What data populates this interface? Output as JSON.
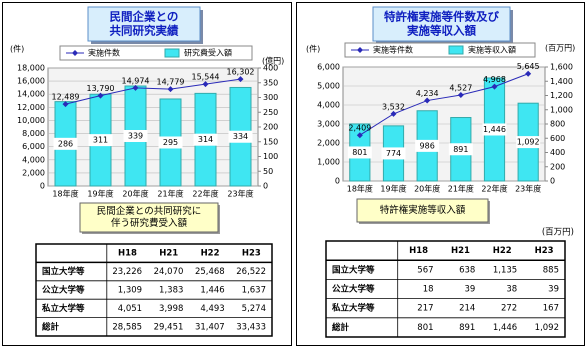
{
  "chart_data": [
    {
      "type": "combo",
      "title": [
        "民間企業との",
        "共同研究実績"
      ],
      "y_label": "(件)",
      "y2_label": "(億円)",
      "categories": [
        "18年度",
        "19年度",
        "20年度",
        "21年度",
        "22年度",
        "23年度"
      ],
      "series": [
        {
          "name": "実施件数",
          "type": "line",
          "color": "#2a2ab8",
          "values": [
            12489,
            13790,
            14974,
            14779,
            15544,
            16302
          ],
          "value_labels": [
            "12,489",
            "13,790",
            "14,974",
            "14,779",
            "15,544",
            "16,302"
          ]
        },
        {
          "name": "研究費受入額",
          "type": "bar",
          "axis": "y2",
          "color": "#3fe6f2",
          "values": [
            286,
            311,
            339,
            295,
            314,
            334
          ]
        }
      ],
      "ylim": [
        0,
        18000
      ],
      "yticks": [
        0,
        {
          "value": 2000,
          "label": "2,000"
        },
        {
          "value": 4000,
          "label": "4,000"
        },
        {
          "value": 6000,
          "label": "6,000"
        },
        {
          "value": 8000,
          "label": "8,000"
        },
        {
          "value": 10000,
          "label": "10,000"
        },
        {
          "value": 12000,
          "label": "12,000"
        },
        {
          "value": 14000,
          "label": "14,000"
        },
        {
          "value": 16000,
          "label": "16,000"
        },
        {
          "value": 18000,
          "label": "18,000"
        }
      ],
      "y2lim": [
        0,
        400
      ],
      "y2ticks": [
        0,
        50,
        100,
        150,
        200,
        250,
        300,
        350,
        400
      ],
      "grid": true,
      "legend": "top"
    },
    {
      "type": "combo",
      "title": [
        "特許権実施等件数及び",
        "実施等収入額"
      ],
      "y_label": "(件)",
      "y2_label": "(百万円)",
      "categories": [
        "18年度",
        "19年度",
        "20年度",
        "21年度",
        "22年度",
        "23年度"
      ],
      "series": [
        {
          "name": "実施等件数",
          "type": "line",
          "color": "#2a2ab8",
          "values": [
            2409,
            3532,
            4234,
            4527,
            4968,
            5645
          ],
          "value_labels": [
            "2,409",
            "3,532",
            "4,234",
            "4,527",
            "4,968",
            "5,645"
          ]
        },
        {
          "name": "実施等収入額",
          "type": "bar",
          "axis": "y2",
          "color": "#3fe6f2",
          "values": [
            801,
            774,
            986,
            891,
            1446,
            1092
          ],
          "value_labels": [
            "801",
            "774",
            "986",
            "891",
            "1,446",
            "1,092"
          ]
        }
      ],
      "ylim": [
        0,
        6000
      ],
      "yticks": [
        0,
        {
          "value": 1000,
          "label": "1,000"
        },
        {
          "value": 2000,
          "label": "2,000"
        },
        {
          "value": 3000,
          "label": "3,000"
        },
        {
          "value": 4000,
          "label": "4,000"
        },
        {
          "value": 5000,
          "label": "5,000"
        },
        {
          "value": 6000,
          "label": "6,000"
        }
      ],
      "y2lim": [
        0,
        1600
      ],
      "y2ticks": [
        0,
        200,
        400,
        600,
        800,
        {
          "value": 1000,
          "label": "1,000"
        },
        {
          "value": 1200,
          "label": "1,200"
        },
        {
          "value": 1400,
          "label": "1,400"
        },
        {
          "value": 1600,
          "label": "1,600"
        }
      ],
      "grid": true,
      "legend": "top"
    }
  ],
  "captions": [
    [
      "民間企業との共同研究に",
      "伴う研究費受入額"
    ],
    [
      "特許権実施等収入額"
    ]
  ],
  "tables": [
    {
      "columns": [
        "H18",
        "H21",
        "H22",
        "H23"
      ],
      "rows": [
        {
          "label": "国立大学等",
          "cells": [
            "23,226",
            "24,070",
            "25,468",
            "26,522"
          ]
        },
        {
          "label": "公立大学等",
          "cells": [
            "1,309",
            "1,383",
            "1,446",
            "1,637"
          ]
        },
        {
          "label": "私立大学等",
          "cells": [
            "4,051",
            "3,998",
            "4,493",
            "5,274"
          ]
        },
        {
          "label": "総計",
          "cells": [
            "28,585",
            "29,451",
            "31,407",
            "33,433"
          ]
        }
      ]
    },
    {
      "unit": "(百万円)",
      "columns": [
        "H18",
        "H21",
        "H22",
        "H23"
      ],
      "rows": [
        {
          "label": "国立大学等",
          "cells": [
            "567",
            "638",
            "1,135",
            "885"
          ]
        },
        {
          "label": "公立大学等",
          "cells": [
            "18",
            "39",
            "38",
            "39"
          ]
        },
        {
          "label": "私立大学等",
          "cells": [
            "217",
            "214",
            "272",
            "167"
          ]
        },
        {
          "label": "総計",
          "cells": [
            "801",
            "891",
            "1,446",
            "1,092"
          ]
        }
      ]
    }
  ]
}
